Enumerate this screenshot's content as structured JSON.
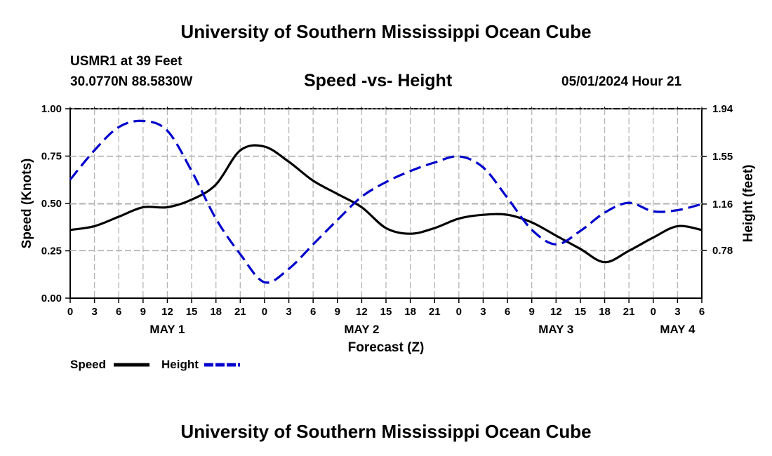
{
  "page": {
    "title": "University of Southern Mississippi Ocean Cube",
    "footer_title": "University of Southern Mississippi Ocean Cube",
    "station": "USMR1 at 39 Feet",
    "location": "30.0770N  88.5830W",
    "subtitle": "Speed -vs- Height",
    "datetime": "05/01/2024 Hour 21"
  },
  "chart_data": {
    "type": "line",
    "title": "Speed -vs- Height",
    "xlabel": "Forecast (Z)",
    "ylabel": "Speed (Knots)",
    "y2label": "Height (feet)",
    "xlim": [
      0,
      78
    ],
    "ylim": [
      0,
      1
    ],
    "y2lim": [
      0.39,
      1.94
    ],
    "x_tick_values": [
      0,
      3,
      6,
      9,
      12,
      15,
      18,
      21,
      24,
      27,
      30,
      33,
      36,
      39,
      42,
      45,
      48,
      51,
      54,
      57,
      60,
      63,
      66,
      69,
      72,
      75,
      78
    ],
    "x_tick_labels": [
      "0",
      "3",
      "6",
      "9",
      "12",
      "15",
      "18",
      "21",
      "0",
      "3",
      "6",
      "9",
      "12",
      "15",
      "18",
      "21",
      "0",
      "3",
      "6",
      "9",
      "12",
      "15",
      "18",
      "21",
      "0",
      "3",
      "6"
    ],
    "day_labels": [
      {
        "x": 12,
        "label": "MAY 1"
      },
      {
        "x": 36,
        "label": "MAY 2"
      },
      {
        "x": 60,
        "label": "MAY 3"
      },
      {
        "x": 75,
        "label": "MAY 4"
      }
    ],
    "y_tick_values": [
      0,
      0.25,
      0.5,
      0.75,
      1.0
    ],
    "y_tick_labels": [
      "0.00",
      "0.25",
      "0.50",
      "0.75",
      "1.00"
    ],
    "y2_tick_values": [
      0.78,
      1.16,
      1.55,
      1.94
    ],
    "y2_tick_labels": [
      "0.78",
      "1.16",
      "1.55",
      "1.94"
    ],
    "grid": true,
    "series": [
      {
        "name": "Speed",
        "axis": "left",
        "color": "#000000",
        "dash": "solid",
        "x": [
          0,
          3,
          6,
          9,
          12,
          15,
          18,
          21,
          24,
          27,
          30,
          33,
          36,
          39,
          42,
          45,
          48,
          51,
          54,
          57,
          60,
          63,
          66,
          69,
          72,
          75,
          78
        ],
        "values": [
          0.36,
          0.38,
          0.43,
          0.48,
          0.48,
          0.52,
          0.6,
          0.78,
          0.8,
          0.72,
          0.62,
          0.55,
          0.48,
          0.37,
          0.34,
          0.37,
          0.42,
          0.44,
          0.44,
          0.4,
          0.33,
          0.26,
          0.19,
          0.25,
          0.32,
          0.38,
          0.36
        ]
      },
      {
        "name": "Height",
        "axis": "right",
        "color": "#0000cc",
        "dash": "dashed",
        "x": [
          0,
          3,
          6,
          9,
          12,
          15,
          18,
          21,
          24,
          27,
          30,
          33,
          36,
          39,
          42,
          45,
          48,
          51,
          54,
          57,
          60,
          63,
          66,
          69,
          72,
          75,
          78
        ],
        "values": [
          1.36,
          1.6,
          1.79,
          1.84,
          1.76,
          1.43,
          1.04,
          0.75,
          0.52,
          0.63,
          0.83,
          1.03,
          1.22,
          1.34,
          1.43,
          1.5,
          1.55,
          1.46,
          1.21,
          0.95,
          0.83,
          0.94,
          1.09,
          1.17,
          1.1,
          1.11,
          1.16
        ]
      }
    ],
    "legend": [
      {
        "label": "Speed",
        "color": "#000000",
        "style": "solid"
      },
      {
        "label": "Height",
        "color": "#0000cc",
        "style": "dashed"
      }
    ],
    "legend_position": "bottom-left"
  }
}
